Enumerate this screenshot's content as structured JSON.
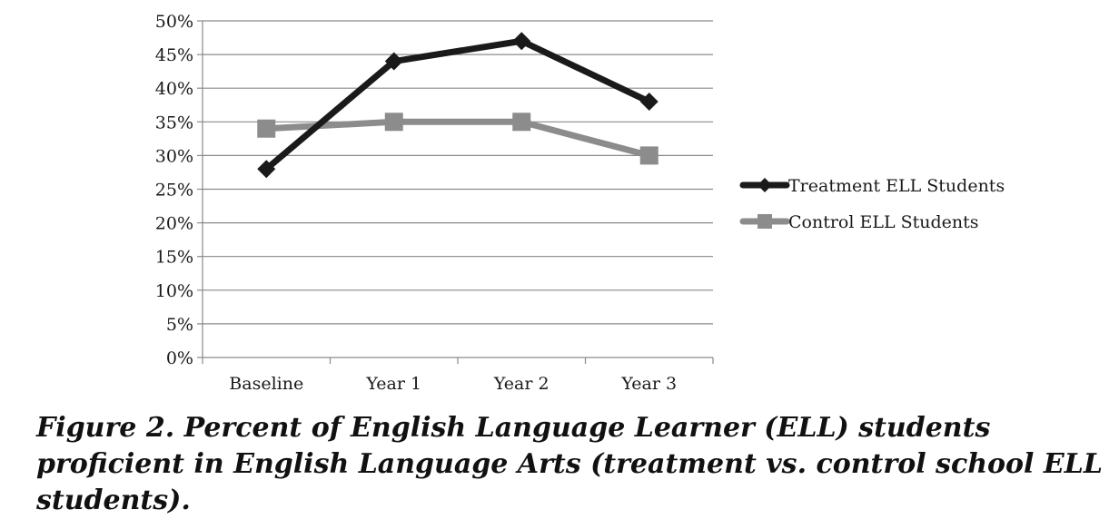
{
  "chart_data": {
    "type": "line",
    "categories": [
      "Baseline",
      "Year 1",
      "Year 2",
      "Year 3"
    ],
    "series": [
      {
        "name": "Treatment ELL Students",
        "values": [
          28,
          44,
          47,
          38
        ],
        "color": "#1a1a1a",
        "marker": "diamond"
      },
      {
        "name": "Control ELL Students",
        "values": [
          34,
          35,
          35,
          30
        ],
        "color": "#8c8c8c",
        "marker": "square"
      }
    ],
    "y_ticks": [
      "0%",
      "5%",
      "10%",
      "15%",
      "20%",
      "25%",
      "30%",
      "35%",
      "40%",
      "45%",
      "50%"
    ],
    "ylim": [
      0,
      50
    ],
    "grid": "horizontal",
    "legend_position": "right"
  },
  "caption": "Figure 2.  Percent of English Language Learner (ELL) students proficient in English Language Arts (treatment vs. control school ELL students)."
}
